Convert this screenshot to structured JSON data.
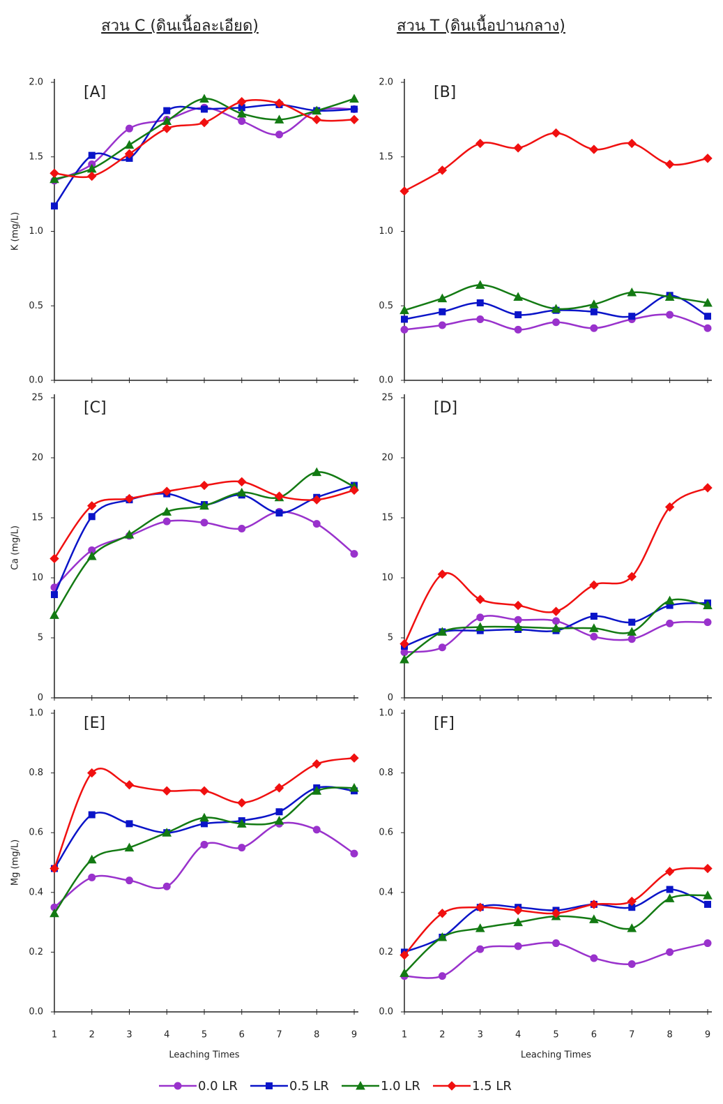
{
  "headers": [
    "สวน C (ดินเนื้อละเอียด)",
    "สวน T (ดินเนื้อปานกลาง)"
  ],
  "chart_data": [
    {
      "type": "line",
      "label": "[A]",
      "ylabel": "K (mg/L)",
      "x": [
        1,
        2,
        3,
        4,
        5,
        6,
        7,
        8,
        9
      ],
      "xlim": [
        1,
        9
      ],
      "xticks": [
        1,
        2,
        3,
        4,
        5,
        6,
        7,
        8,
        9
      ],
      "ylim": [
        0,
        2
      ],
      "yticks": [
        {
          "value": 0,
          "label": "0.0"
        },
        0.5,
        {
          "value": 1,
          "label": "1.0"
        },
        1.5,
        {
          "value": 2,
          "label": "2.0"
        }
      ],
      "series": [
        {
          "name": "0.0 LR",
          "color": "#9932cc",
          "marker": "circle",
          "values": [
            1.34,
            1.45,
            1.69,
            1.75,
            1.83,
            1.74,
            1.65,
            1.81,
            1.82
          ]
        },
        {
          "name": "0.5 LR",
          "color": "#0a14c8",
          "marker": "square",
          "values": [
            1.17,
            1.51,
            1.49,
            1.81,
            1.82,
            1.83,
            1.85,
            1.81,
            1.82
          ]
        },
        {
          "name": "1.0 LR",
          "color": "#137a13",
          "marker": "triangle",
          "values": [
            1.35,
            1.42,
            1.58,
            1.74,
            1.89,
            1.79,
            1.75,
            1.81,
            1.89
          ]
        },
        {
          "name": "1.5 LR",
          "color": "#f01010",
          "marker": "diamond",
          "values": [
            1.39,
            1.37,
            1.52,
            1.69,
            1.73,
            1.87,
            1.86,
            1.75,
            1.75
          ]
        }
      ]
    },
    {
      "type": "line",
      "label": "[B]",
      "x": [
        1,
        2,
        3,
        4,
        5,
        6,
        7,
        8,
        9
      ],
      "xlim": [
        1,
        9
      ],
      "xticks": [
        1,
        2,
        3,
        4,
        5,
        6,
        7,
        8,
        9
      ],
      "ylim": [
        0,
        2
      ],
      "yticks": [
        {
          "value": 0,
          "label": "0.0"
        },
        0.5,
        {
          "value": 1,
          "label": "1.0"
        },
        1.5,
        {
          "value": 2,
          "label": "2.0"
        }
      ],
      "series": [
        {
          "name": "0.0 LR",
          "color": "#9932cc",
          "marker": "circle",
          "values": [
            0.34,
            0.37,
            0.41,
            0.34,
            0.39,
            0.35,
            0.41,
            0.44,
            0.35
          ]
        },
        {
          "name": "0.5 LR",
          "color": "#0a14c8",
          "marker": "square",
          "values": [
            0.41,
            0.46,
            0.52,
            0.44,
            0.47,
            0.46,
            0.43,
            0.57,
            0.43
          ]
        },
        {
          "name": "1.0 LR",
          "color": "#137a13",
          "marker": "triangle",
          "values": [
            0.47,
            0.55,
            0.64,
            0.56,
            0.48,
            0.51,
            0.59,
            0.56,
            0.52
          ]
        },
        {
          "name": "1.5 LR",
          "color": "#f01010",
          "marker": "diamond",
          "values": [
            1.27,
            1.41,
            1.59,
            1.56,
            1.66,
            1.55,
            1.59,
            1.45,
            1.49
          ]
        }
      ]
    },
    {
      "type": "line",
      "label": "[C]",
      "ylabel": "Ca (mg/L)",
      "x": [
        1,
        2,
        3,
        4,
        5,
        6,
        7,
        8,
        9
      ],
      "xlim": [
        1,
        9
      ],
      "xticks": [
        1,
        2,
        3,
        4,
        5,
        6,
        7,
        8,
        9
      ],
      "ylim": [
        0,
        25
      ],
      "yticks": [
        0,
        5,
        10,
        15,
        20,
        25
      ],
      "series": [
        {
          "name": "0.0 LR",
          "color": "#9932cc",
          "marker": "circle",
          "values": [
            9.2,
            12.3,
            13.5,
            14.7,
            14.6,
            14.1,
            15.5,
            14.5,
            12.0
          ]
        },
        {
          "name": "0.5 LR",
          "color": "#0a14c8",
          "marker": "square",
          "values": [
            8.6,
            15.1,
            16.5,
            17.0,
            16.1,
            16.9,
            15.4,
            16.7,
            17.7
          ]
        },
        {
          "name": "1.0 LR",
          "color": "#137a13",
          "marker": "triangle",
          "values": [
            6.9,
            11.8,
            13.6,
            15.5,
            16.0,
            17.1,
            16.7,
            18.8,
            17.6
          ]
        },
        {
          "name": "1.5 LR",
          "color": "#f01010",
          "marker": "diamond",
          "values": [
            11.6,
            16.0,
            16.6,
            17.2,
            17.7,
            18.0,
            16.8,
            16.5,
            17.3
          ]
        }
      ]
    },
    {
      "type": "line",
      "label": "[D]",
      "x": [
        1,
        2,
        3,
        4,
        5,
        6,
        7,
        8,
        9
      ],
      "xlim": [
        1,
        9
      ],
      "xticks": [
        1,
        2,
        3,
        4,
        5,
        6,
        7,
        8,
        9
      ],
      "ylim": [
        0,
        25
      ],
      "yticks": [
        0,
        5,
        10,
        15,
        20,
        25
      ],
      "series": [
        {
          "name": "0.0 LR",
          "color": "#9932cc",
          "marker": "circle",
          "values": [
            3.8,
            4.2,
            6.7,
            6.5,
            6.4,
            5.1,
            4.9,
            6.2,
            6.3
          ]
        },
        {
          "name": "0.5 LR",
          "color": "#0a14c8",
          "marker": "square",
          "values": [
            4.3,
            5.5,
            5.6,
            5.7,
            5.6,
            6.8,
            6.3,
            7.7,
            7.9
          ]
        },
        {
          "name": "1.0 LR",
          "color": "#137a13",
          "marker": "triangle",
          "values": [
            3.2,
            5.5,
            5.9,
            5.9,
            5.8,
            5.8,
            5.5,
            8.1,
            7.7
          ]
        },
        {
          "name": "1.5 LR",
          "color": "#f01010",
          "marker": "diamond",
          "values": [
            4.5,
            10.3,
            8.2,
            7.7,
            7.2,
            9.4,
            10.1,
            15.9,
            17.5
          ]
        }
      ]
    },
    {
      "type": "line",
      "label": "[E]",
      "ylabel": "Mg (mg/L)",
      "xlabel": "Leaching Times",
      "x": [
        1,
        2,
        3,
        4,
        5,
        6,
        7,
        8,
        9
      ],
      "xlim": [
        1,
        9
      ],
      "xticks": [
        1,
        2,
        3,
        4,
        5,
        6,
        7,
        8,
        9
      ],
      "ylim": [
        0,
        1
      ],
      "yticks": [
        {
          "value": 0,
          "label": "0.0"
        },
        0.2,
        0.4,
        0.6,
        0.8,
        {
          "value": 1,
          "label": "1.0"
        }
      ],
      "series": [
        {
          "name": "0.0 LR",
          "color": "#9932cc",
          "marker": "circle",
          "values": [
            0.35,
            0.45,
            0.44,
            0.42,
            0.56,
            0.55,
            0.63,
            0.61,
            0.53
          ]
        },
        {
          "name": "0.5 LR",
          "color": "#0a14c8",
          "marker": "square",
          "values": [
            0.48,
            0.66,
            0.63,
            0.6,
            0.63,
            0.64,
            0.67,
            0.75,
            0.74
          ]
        },
        {
          "name": "1.0 LR",
          "color": "#137a13",
          "marker": "triangle",
          "values": [
            0.33,
            0.51,
            0.55,
            0.6,
            0.65,
            0.63,
            0.64,
            0.74,
            0.75
          ]
        },
        {
          "name": "1.5 LR",
          "color": "#f01010",
          "marker": "diamond",
          "values": [
            0.48,
            0.8,
            0.76,
            0.74,
            0.74,
            0.7,
            0.75,
            0.83,
            0.85
          ]
        }
      ]
    },
    {
      "type": "line",
      "label": "[F]",
      "xlabel": "Leaching Times",
      "x": [
        1,
        2,
        3,
        4,
        5,
        6,
        7,
        8,
        9
      ],
      "xlim": [
        1,
        9
      ],
      "xticks": [
        1,
        2,
        3,
        4,
        5,
        6,
        7,
        8,
        9
      ],
      "ylim": [
        0,
        1
      ],
      "yticks": [
        {
          "value": 0,
          "label": "0.0"
        },
        0.2,
        0.4,
        0.6,
        0.8,
        {
          "value": 1,
          "label": "1.0"
        }
      ],
      "series": [
        {
          "name": "0.0 LR",
          "color": "#9932cc",
          "marker": "circle",
          "values": [
            0.12,
            0.12,
            0.21,
            0.22,
            0.23,
            0.18,
            0.16,
            0.2,
            0.23
          ]
        },
        {
          "name": "0.5 LR",
          "color": "#0a14c8",
          "marker": "square",
          "values": [
            0.2,
            0.25,
            0.35,
            0.35,
            0.34,
            0.36,
            0.35,
            0.41,
            0.36
          ]
        },
        {
          "name": "1.0 LR",
          "color": "#137a13",
          "marker": "triangle",
          "values": [
            0.13,
            0.25,
            0.28,
            0.3,
            0.32,
            0.31,
            0.28,
            0.38,
            0.39
          ]
        },
        {
          "name": "1.5 LR",
          "color": "#f01010",
          "marker": "diamond",
          "values": [
            0.19,
            0.33,
            0.35,
            0.34,
            0.33,
            0.36,
            0.37,
            0.47,
            0.48
          ]
        }
      ]
    }
  ]
}
